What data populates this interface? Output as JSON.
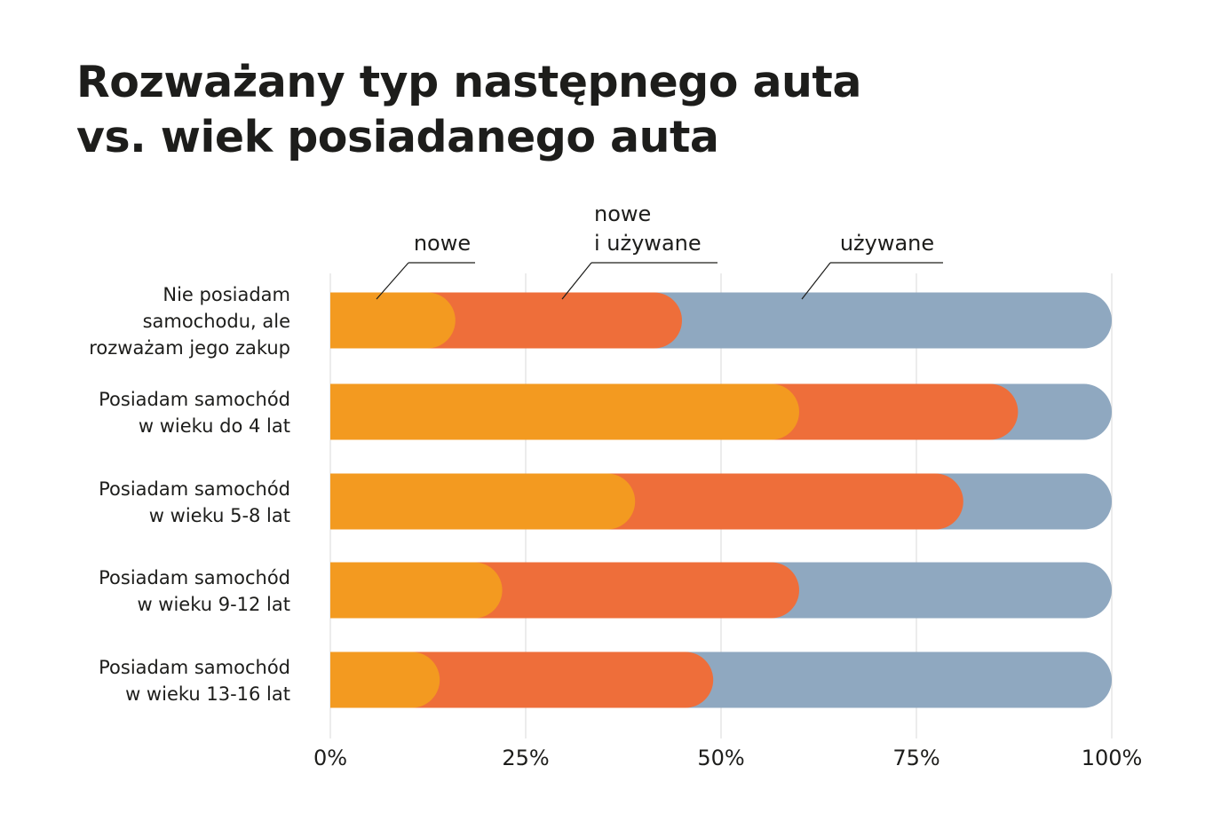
{
  "title": {
    "line1": "Rozważany typ następnego auta",
    "line2": "vs. wiek posiadanego auta"
  },
  "chart_data": {
    "type": "bar",
    "orientation": "horizontal",
    "stacked": true,
    "xlim": [
      0,
      100
    ],
    "x_ticks": [
      "0%",
      "25%",
      "50%",
      "75%",
      "100%"
    ],
    "grid": true,
    "legend_placement": "top",
    "categories": [
      [
        "Nie posiadam",
        "samochodu, ale",
        "rozważam jego zakup"
      ],
      [
        "Posiadam samochód",
        "w wieku do 4 lat"
      ],
      [
        "Posiadam samochód",
        "w wieku 5-8 lat"
      ],
      [
        "Posiadam samochód",
        "w wieku 9-12 lat"
      ],
      [
        "Posiadam samochód",
        "w wieku 13-16 lat"
      ]
    ],
    "series": [
      {
        "name": [
          "nowe"
        ],
        "color": "#f39a20",
        "values": [
          16,
          60,
          39,
          22,
          14
        ]
      },
      {
        "name": [
          "nowe",
          "i używane"
        ],
        "color": "#ee6e3a",
        "values": [
          29,
          28,
          42,
          38,
          35
        ]
      },
      {
        "name": [
          "używane"
        ],
        "color": "#8fa8c0",
        "values": [
          55,
          12,
          19,
          40,
          51
        ]
      }
    ]
  }
}
